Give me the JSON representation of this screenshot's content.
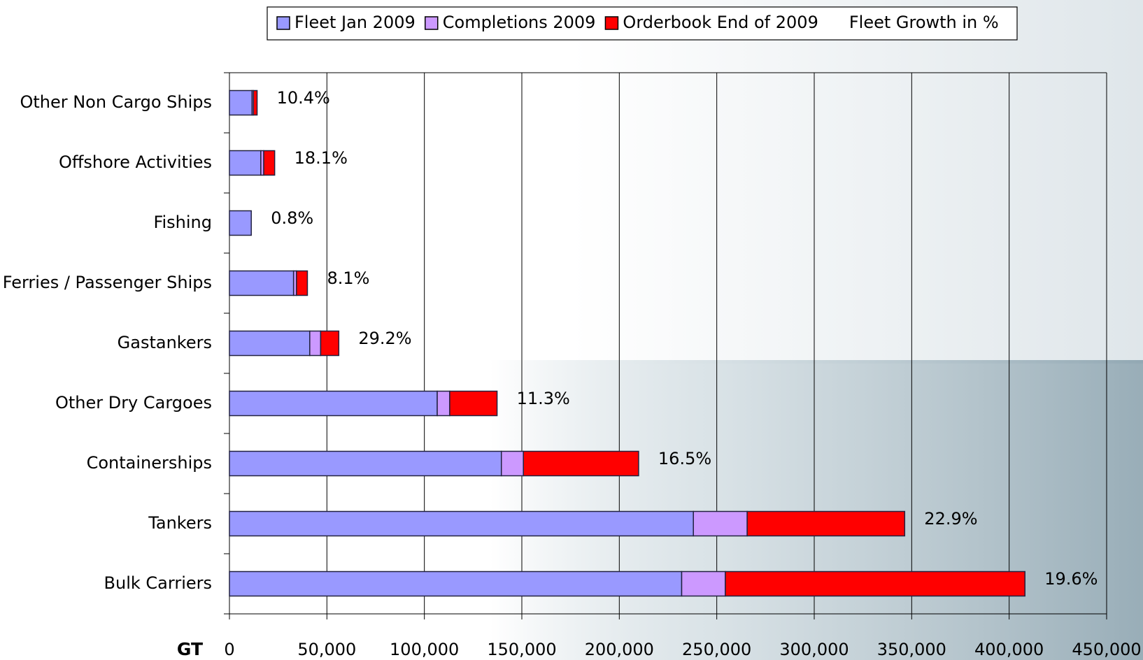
{
  "chart_data": {
    "type": "stacked-barh",
    "xlabel": "GT",
    "categories": [
      "Other Non Cargo Ships",
      "Offshore Activities",
      "Fishing",
      "Ferries / Passenger Ships",
      "Gastankers",
      "Other Dry Cargoes",
      "Containerships",
      "Tankers",
      "Bulk Carriers"
    ],
    "series": [
      {
        "name": "Fleet Jan 2009",
        "color": "#9999ff",
        "values": [
          11600,
          16100,
          11200,
          32900,
          41200,
          106600,
          139500,
          238000,
          232000
        ]
      },
      {
        "name": "Completions 2009",
        "color": "#cc99ff",
        "values": [
          700,
          1500,
          0,
          1500,
          5600,
          6400,
          11300,
          27600,
          22400
        ]
      },
      {
        "name": "Orderbook End of 2009",
        "color": "#ff0000",
        "values": [
          1900,
          5600,
          0,
          5600,
          9300,
          24300,
          59100,
          80800,
          153700
        ]
      }
    ],
    "growth": {
      "name": "Fleet Growth in %",
      "values": [
        10.4,
        18.1,
        0.8,
        8.1,
        29.2,
        11.3,
        16.5,
        22.9,
        19.6
      ],
      "value_labels": [
        "10.4%",
        "18.1%",
        "0.8%",
        "8.1%",
        "29.2%",
        "11.3%",
        "16.5%",
        "22.9%",
        "19.6%"
      ]
    },
    "xlim": [
      0,
      450000
    ],
    "xticks": [
      0,
      {
        "value": 50000,
        "label": "50,000"
      },
      {
        "value": 100000,
        "label": "100,000"
      },
      {
        "value": 150000,
        "label": "150,000"
      },
      {
        "value": 200000,
        "label": "200,000"
      },
      {
        "value": 250000,
        "label": "250,000"
      },
      {
        "value": 300000,
        "label": "300,000"
      },
      {
        "value": 350000,
        "label": "350,000"
      },
      {
        "value": 400000,
        "label": "400,000"
      },
      {
        "value": 450000,
        "label": "450,000"
      }
    ],
    "grid": true
  }
}
